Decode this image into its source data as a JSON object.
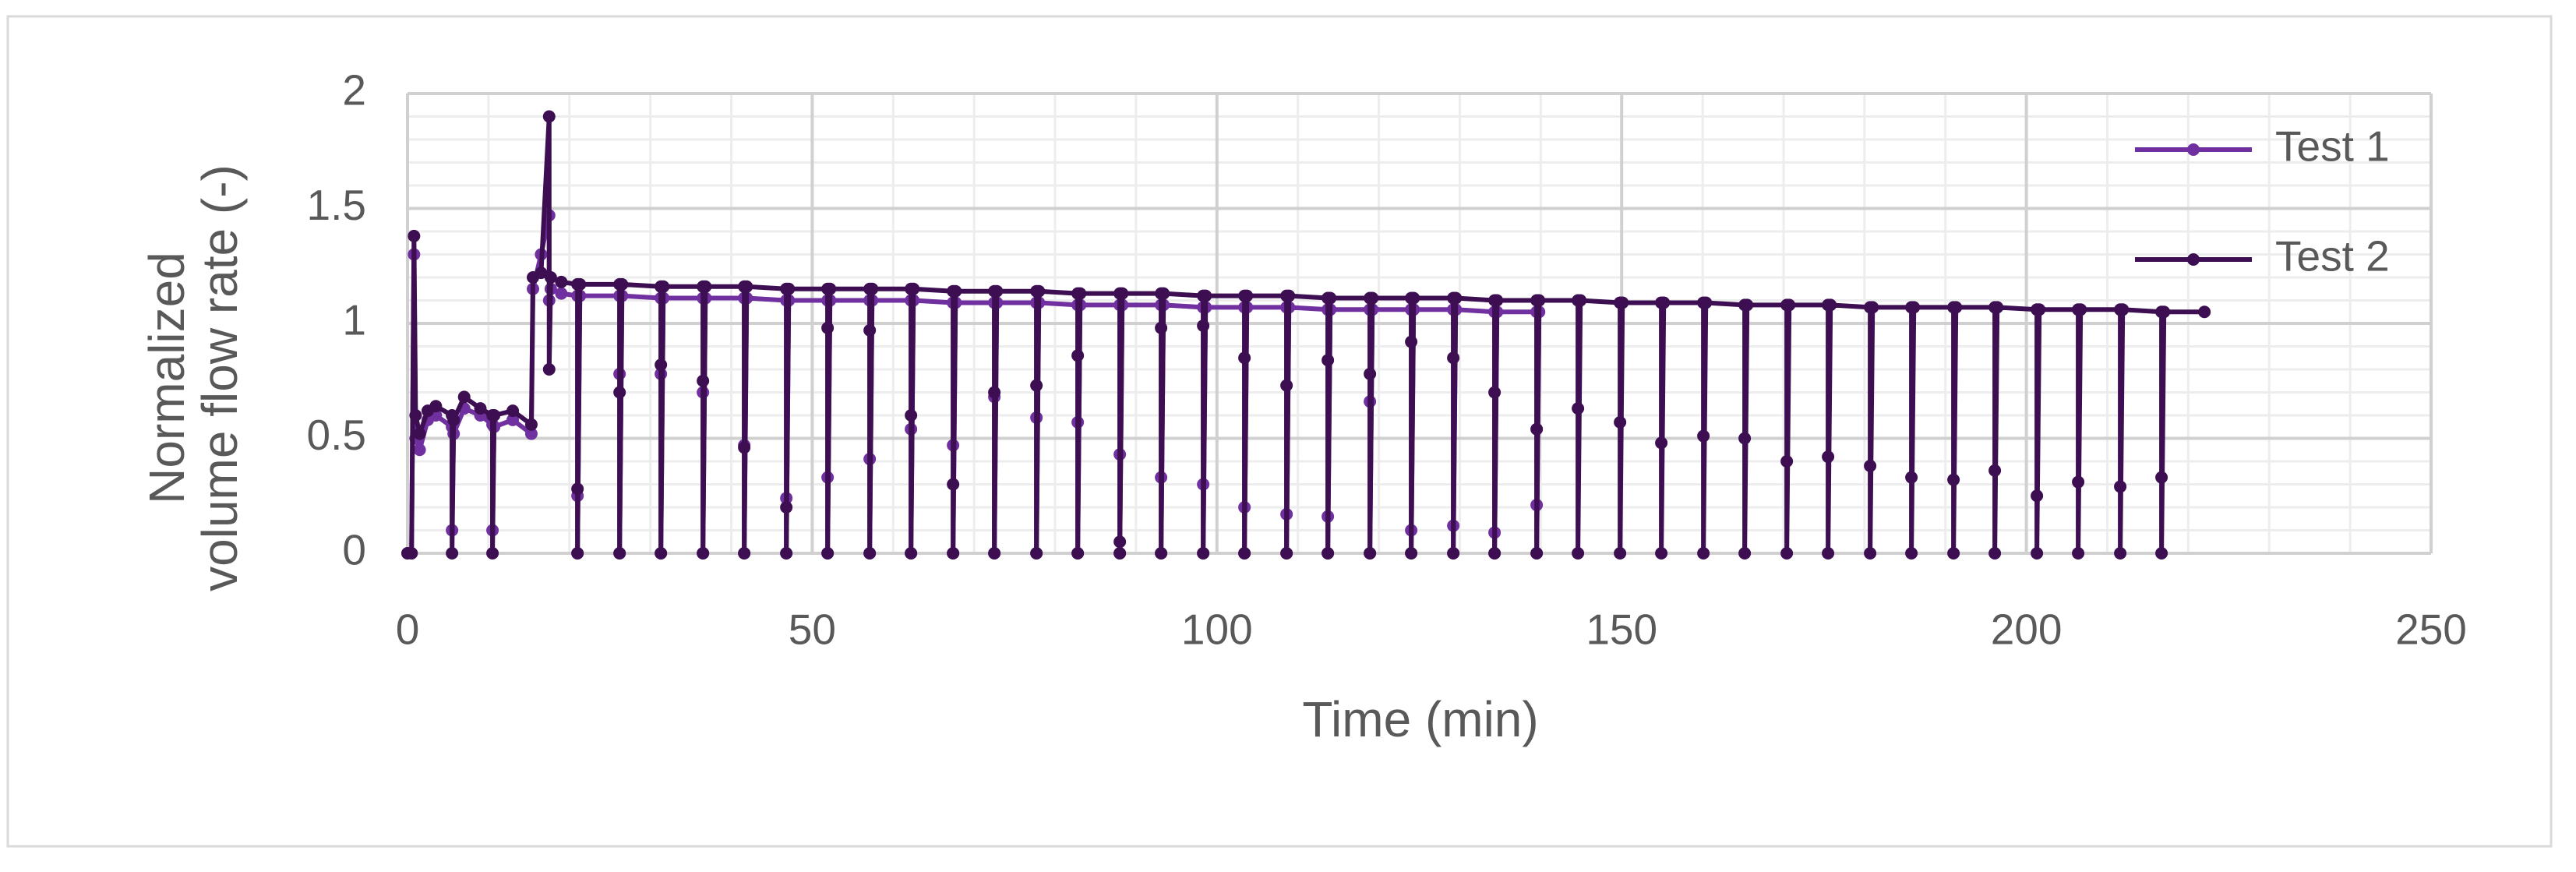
{
  "chart_data": {
    "type": "line",
    "x_label": "Time (min)",
    "y_label": "Normalized volume flow rate (-)",
    "xlim": [
      0,
      250
    ],
    "xticks": [
      0,
      50,
      100,
      150,
      200,
      250
    ],
    "ylim": [
      0,
      2
    ],
    "yticks": [
      0,
      0.5,
      1,
      1.5,
      2
    ],
    "minor_xticks": [
      10,
      20,
      30,
      40,
      60,
      70,
      80,
      90,
      110,
      120,
      130,
      140,
      160,
      170,
      180,
      190,
      210,
      220,
      230,
      240
    ],
    "minor_yticks": [
      0.1,
      0.2,
      0.3,
      0.4,
      0.6,
      0.7,
      0.8,
      0.9,
      1.1,
      1.2,
      1.3,
      1.4,
      1.6,
      1.7,
      1.8,
      1.9
    ],
    "grid": true,
    "legend": "top-right",
    "x": [
      0,
      0.5,
      0.8,
      1.0,
      1.5,
      2.5,
      3.5,
      5.5,
      5.5,
      5.7,
      7,
      9,
      10.5,
      10.5,
      10.7,
      13,
      15.3,
      15.5,
      16.5,
      17.5,
      17.5,
      17.7,
      19,
      21,
      21,
      21,
      21.3,
      26.2,
      26.2,
      26.2,
      26.5,
      31.3,
      31.3,
      31.3,
      31.6,
      36.5,
      36.5,
      36.5,
      36.8,
      41.6,
      41.6,
      41.6,
      41.9,
      46.8,
      46.8,
      46.8,
      47.1,
      51.9,
      51.9,
      51.9,
      52.2,
      57.1,
      57.1,
      57.1,
      57.4,
      62.2,
      62.2,
      62.2,
      62.5,
      67.4,
      67.4,
      67.4,
      67.7,
      72.5,
      72.5,
      72.5,
      72.8,
      77.7,
      77.7,
      77.7,
      78,
      82.8,
      82.8,
      82.8,
      83.1,
      88,
      88,
      88,
      88.3,
      93.1,
      93.1,
      93.1,
      93.4,
      98.3,
      98.3,
      98.3,
      98.6,
      103.4,
      103.4,
      103.4,
      103.7,
      108.6,
      108.6,
      108.6,
      108.9,
      113.7,
      113.7,
      113.7,
      114,
      118.9,
      118.9,
      118.9,
      119.2,
      124,
      124,
      124,
      124.3,
      129.2,
      129.2,
      129.2,
      129.5,
      134.3,
      134.3,
      134.3,
      134.6,
      139.5,
      139.5,
      139.5,
      139.8,
      144.6,
      144.6,
      144.6,
      144.9,
      149.8,
      149.8,
      149.8,
      150.1,
      154.9,
      154.9,
      154.9,
      155.2,
      160.1,
      160.1,
      160.1,
      160.4,
      165.2,
      165.2,
      165.2,
      165.5,
      170.4,
      170.4,
      170.4,
      170.7,
      175.5,
      175.5,
      175.5,
      175.8,
      180.7,
      180.7,
      180.7,
      181,
      185.8,
      185.8,
      185.8,
      186.1,
      191,
      191,
      191,
      191.3,
      196.1,
      196.1,
      196.1,
      196.4,
      201.3,
      201.3,
      201.3,
      201.6,
      206.4,
      206.4,
      206.4,
      206.7,
      211.6,
      211.6,
      211.6,
      211.9,
      216.7,
      216.7,
      216.7,
      217,
      222
    ],
    "series": [
      {
        "name": "Test 1",
        "color": "#7030a0",
        "values": [
          0,
          0,
          1.3,
          0.5,
          0.45,
          0.58,
          0.6,
          0.55,
          0.1,
          0.52,
          0.63,
          0.6,
          0.56,
          0.1,
          0.55,
          0.58,
          0.52,
          1.15,
          1.3,
          1.47,
          1.1,
          1.15,
          1.13,
          1.12,
          0.25,
          0,
          1.12,
          1.12,
          0.78,
          0,
          1.12,
          1.11,
          0.78,
          0,
          1.11,
          1.11,
          0.7,
          0,
          1.11,
          1.11,
          0.47,
          0,
          1.11,
          1.1,
          0.24,
          0,
          1.1,
          1.1,
          0.33,
          0,
          1.1,
          1.1,
          0.41,
          0,
          1.1,
          1.1,
          0.54,
          0,
          1.1,
          1.09,
          0.47,
          0,
          1.09,
          1.09,
          0.68,
          0,
          1.09,
          1.09,
          0.59,
          0,
          1.09,
          1.08,
          0.57,
          0,
          1.08,
          1.08,
          0.43,
          0,
          1.08,
          1.08,
          0.33,
          0,
          1.08,
          1.07,
          0.3,
          0,
          1.07,
          1.07,
          0.2,
          0,
          1.07,
          1.07,
          0.17,
          0,
          1.07,
          1.06,
          0.16,
          0,
          1.06,
          1.06,
          0.66,
          0,
          1.06,
          1.06,
          0.1,
          0,
          1.06,
          1.06,
          0.12,
          0,
          1.06,
          1.05,
          0.09,
          0,
          1.05,
          1.05,
          0.21,
          0,
          1.05,
          null,
          null,
          null,
          null,
          null,
          null,
          null,
          null,
          null,
          null,
          null,
          null,
          null,
          null,
          null,
          null,
          null,
          null,
          null,
          null,
          null,
          null,
          null,
          null,
          null,
          null,
          null,
          null,
          null,
          null,
          null,
          null,
          null,
          null,
          null,
          null,
          null,
          null,
          null,
          null,
          null,
          null,
          null,
          null,
          null,
          null,
          null,
          null,
          null,
          null,
          null,
          null,
          null,
          null,
          null,
          null,
          null,
          null,
          null,
          null,
          null
        ]
      },
      {
        "name": "Test 2",
        "color": "#3d0f52",
        "values": [
          0,
          0,
          1.38,
          0.6,
          0.52,
          0.62,
          0.64,
          0.6,
          0,
          0.58,
          0.68,
          0.63,
          0.6,
          0,
          0.6,
          0.62,
          0.56,
          1.2,
          1.22,
          1.9,
          0.8,
          1.2,
          1.18,
          1.17,
          0.28,
          0,
          1.17,
          1.17,
          0.7,
          0,
          1.17,
          1.16,
          0.82,
          0,
          1.16,
          1.16,
          0.75,
          0,
          1.16,
          1.16,
          0.46,
          0,
          1.16,
          1.15,
          0.2,
          0,
          1.15,
          1.15,
          0.98,
          0,
          1.15,
          1.15,
          0.97,
          0,
          1.15,
          1.15,
          0.6,
          0,
          1.15,
          1.14,
          0.3,
          0,
          1.14,
          1.14,
          0.7,
          0,
          1.14,
          1.14,
          0.73,
          0,
          1.14,
          1.13,
          0.86,
          0,
          1.13,
          1.13,
          0.05,
          0,
          1.13,
          1.13,
          0.98,
          0,
          1.13,
          1.12,
          0.99,
          0,
          1.12,
          1.12,
          0.85,
          0,
          1.12,
          1.12,
          0.73,
          0,
          1.12,
          1.11,
          0.84,
          0,
          1.11,
          1.11,
          0.78,
          0,
          1.11,
          1.11,
          0.92,
          0,
          1.11,
          1.11,
          0.85,
          0,
          1.11,
          1.1,
          0.7,
          0,
          1.1,
          1.1,
          0.54,
          0,
          1.1,
          1.1,
          0.63,
          0,
          1.1,
          1.09,
          0.57,
          0,
          1.09,
          1.09,
          0.48,
          0,
          1.09,
          1.09,
          0.51,
          0,
          1.09,
          1.08,
          0.5,
          0,
          1.08,
          1.08,
          0.4,
          0,
          1.08,
          1.08,
          0.42,
          0,
          1.08,
          1.07,
          0.38,
          0,
          1.07,
          1.07,
          0.33,
          0,
          1.07,
          1.07,
          0.32,
          0,
          1.07,
          1.07,
          0.36,
          0,
          1.07,
          1.06,
          0.25,
          0,
          1.06,
          1.06,
          0.31,
          0,
          1.06,
          1.06,
          0.29,
          0,
          1.06,
          1.05,
          0.33,
          0,
          1.05,
          1.05
        ]
      }
    ]
  }
}
